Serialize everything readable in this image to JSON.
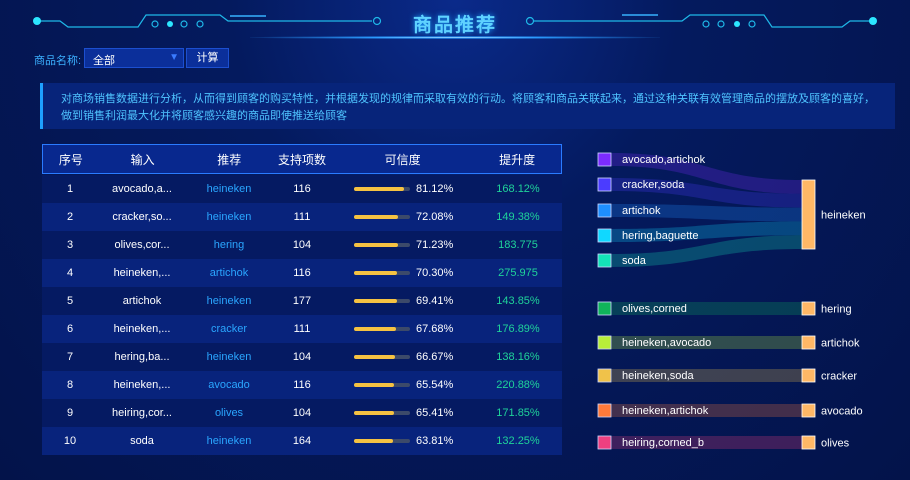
{
  "title": "商品推荐",
  "filter": {
    "label": "商品名称:",
    "selected": "全部",
    "calc_label": "计算"
  },
  "description": "对商场销售数据进行分析，从而得到顾客的购买特性，并根据发现的规律而采取有效的行动。将顾客和商品关联起来，通过这种关联有效管理商品的摆放及顾客的喜好，做到销售利润最大化并将顾客感兴趣的商品即使推送给顾客",
  "table": {
    "headers": [
      "序号",
      "输入",
      "推荐",
      "支持项数",
      "可信度",
      "提升度"
    ],
    "rows": [
      {
        "no": "1",
        "input": "avocado,a...",
        "rec": "heineken",
        "support": "116",
        "conf": "81.12%",
        "conf_val": 81.12,
        "lift": "168.12%"
      },
      {
        "no": "2",
        "input": "cracker,so...",
        "rec": "heineken",
        "support": "111",
        "conf": "72.08%",
        "conf_val": 72.08,
        "lift": "149.38%"
      },
      {
        "no": "3",
        "input": "olives,cor...",
        "rec": "hering",
        "support": "104",
        "conf": "71.23%",
        "conf_val": 71.23,
        "lift": "183.775"
      },
      {
        "no": "4",
        "input": "heineken,...",
        "rec": "artichok",
        "support": "116",
        "conf": "70.30%",
        "conf_val": 70.3,
        "lift": "275.975"
      },
      {
        "no": "5",
        "input": "artichok",
        "rec": "heineken",
        "support": "177",
        "conf": "69.41%",
        "conf_val": 69.41,
        "lift": "143.85%"
      },
      {
        "no": "6",
        "input": "heineken,...",
        "rec": "cracker",
        "support": "111",
        "conf": "67.68%",
        "conf_val": 67.68,
        "lift": "176.89%"
      },
      {
        "no": "7",
        "input": "hering,ba...",
        "rec": "heineken",
        "support": "104",
        "conf": "66.67%",
        "conf_val": 66.67,
        "lift": "138.16%"
      },
      {
        "no": "8",
        "input": "heineken,...",
        "rec": "avocado",
        "support": "116",
        "conf": "65.54%",
        "conf_val": 65.54,
        "lift": "220.88%"
      },
      {
        "no": "9",
        "input": "heiring,cor...",
        "rec": "olives",
        "support": "104",
        "conf": "65.41%",
        "conf_val": 65.41,
        "lift": "171.85%"
      },
      {
        "no": "10",
        "input": "soda",
        "rec": "heineken",
        "support": "164",
        "conf": "63.81%",
        "conf_val": 63.81,
        "lift": "132.25%"
      }
    ]
  },
  "sankey": {
    "sources": [
      {
        "name": "avocado,artichok",
        "color": "#7b2cff",
        "target": "heineken"
      },
      {
        "name": "cracker,soda",
        "color": "#4b3cff",
        "target": "heineken"
      },
      {
        "name": "artichok",
        "color": "#1e8fff",
        "target": "heineken"
      },
      {
        "name": "hering,baguette",
        "color": "#10d8ff",
        "target": "heineken"
      },
      {
        "name": "soda",
        "color": "#14e3b8",
        "target": "heineken"
      },
      {
        "name": "olives,corned",
        "color": "#10b45a",
        "target": "hering"
      },
      {
        "name": "heineken,avocado",
        "color": "#b8ee3a",
        "target": "artichok"
      },
      {
        "name": "heineken,soda",
        "color": "#f0c24a",
        "target": "cracker"
      },
      {
        "name": "heineken,artichok",
        "color": "#ff7a3a",
        "target": "avocado"
      },
      {
        "name": "heiring,corned_b",
        "color": "#ee4080",
        "target": "olives"
      }
    ],
    "targets": [
      "heineken",
      "hering",
      "artichok",
      "cracker",
      "avocado",
      "olives"
    ],
    "target_color": "#ffb866"
  }
}
